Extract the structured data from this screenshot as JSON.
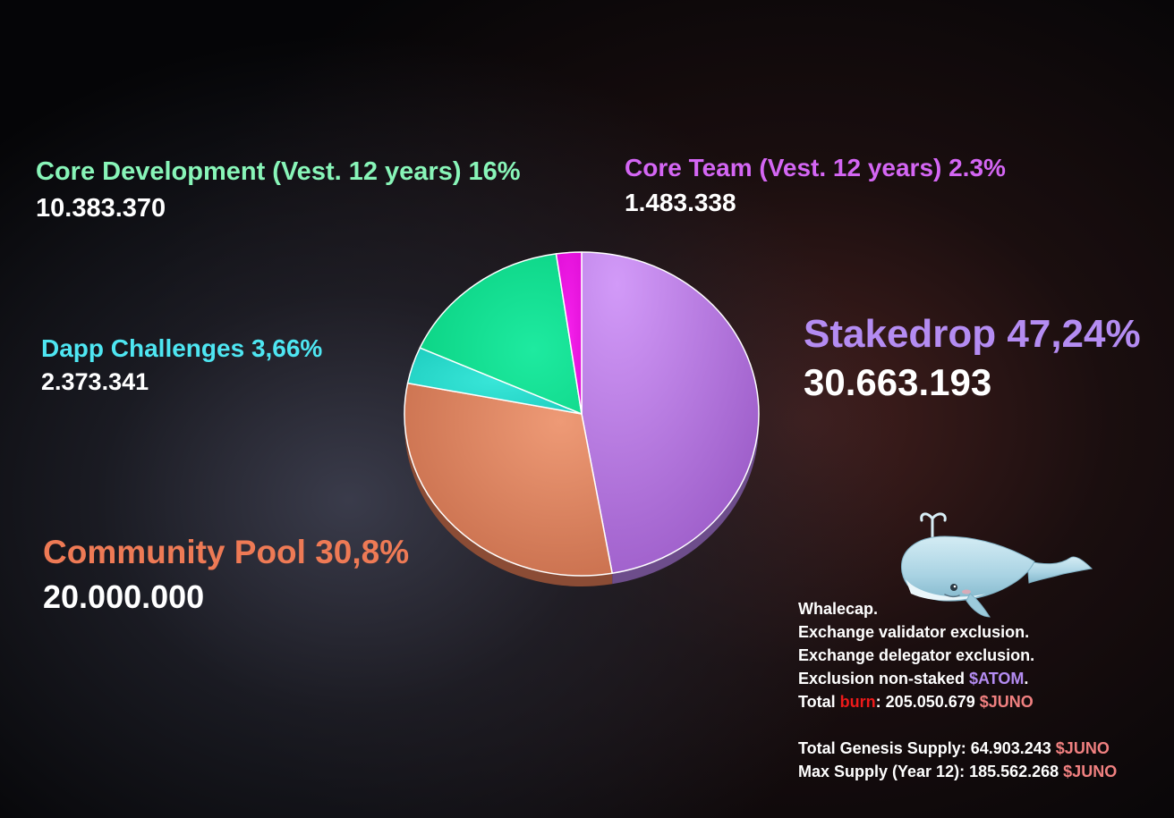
{
  "chart_data": {
    "type": "pie",
    "title": "",
    "slices": [
      {
        "label": "Stakedrop 47,24%",
        "value_text": "30.663.193",
        "percent": 47.24,
        "color": "#b07ce0"
      },
      {
        "label": "Community Pool 30,8%",
        "value_text": "20.000.000",
        "percent": 30.8,
        "color": "#e07a56"
      },
      {
        "label": "Dapp Challenges 3,66%",
        "value_text": "2.373.341",
        "percent": 3.66,
        "color": "#22d6c6"
      },
      {
        "label": "Core Development (Vest. 12 years) 16%",
        "value_text": "10.383.370",
        "percent": 16,
        "color": "#12e28e"
      },
      {
        "label": "Core Team (Vest. 12 years) 2.3%",
        "value_text": "1.483.338",
        "percent": 2.3,
        "color": "#ee10e4"
      }
    ],
    "label_colors": {
      "stakedrop": "#b48cf2",
      "community": "#ee7a55",
      "dapp": "#4ee6f2",
      "core_dev": "#88f5b8",
      "core_team": "#d466f4"
    }
  },
  "labels": {
    "core_dev": {
      "name": "Core Development (Vest. 12 years) 16%",
      "value": "10.383.370"
    },
    "core_team": {
      "name": "Core Team (Vest. 12 years) 2.3%",
      "value": "1.483.338"
    },
    "dapp": {
      "name": "Dapp Challenges 3,66%",
      "value": "2.373.341"
    },
    "stakedrop": {
      "name": "Stakedrop 47,24%",
      "value": "30.663.193"
    },
    "community": {
      "name": "Community Pool 30,8%",
      "value": "20.000.000"
    }
  },
  "notes": {
    "whalecap": "Whalecap.",
    "validator_exclusion": "Exchange validator exclusion.",
    "delegator_exclusion": "Exchange delegator exclusion.",
    "non_staked_prefix": "Exclusion non-staked ",
    "non_staked_token": "$ATOM",
    "non_staked_suffix": ".",
    "burn_prefix": "Total ",
    "burn_word": "burn",
    "burn_middle": ": 205.050.679 ",
    "burn_token": "$JUNO",
    "genesis_prefix": "Total Genesis Supply: 64.903.243 ",
    "genesis_token": "$JUNO",
    "max_prefix": "Max Supply (Year 12): 185.562.268 ",
    "max_token": "$JUNO"
  },
  "colors": {
    "atom": "#b48cf2",
    "burn": "#ee1a1a",
    "juno": "#f08080"
  },
  "icons": {
    "mascot": "whale-icon"
  }
}
